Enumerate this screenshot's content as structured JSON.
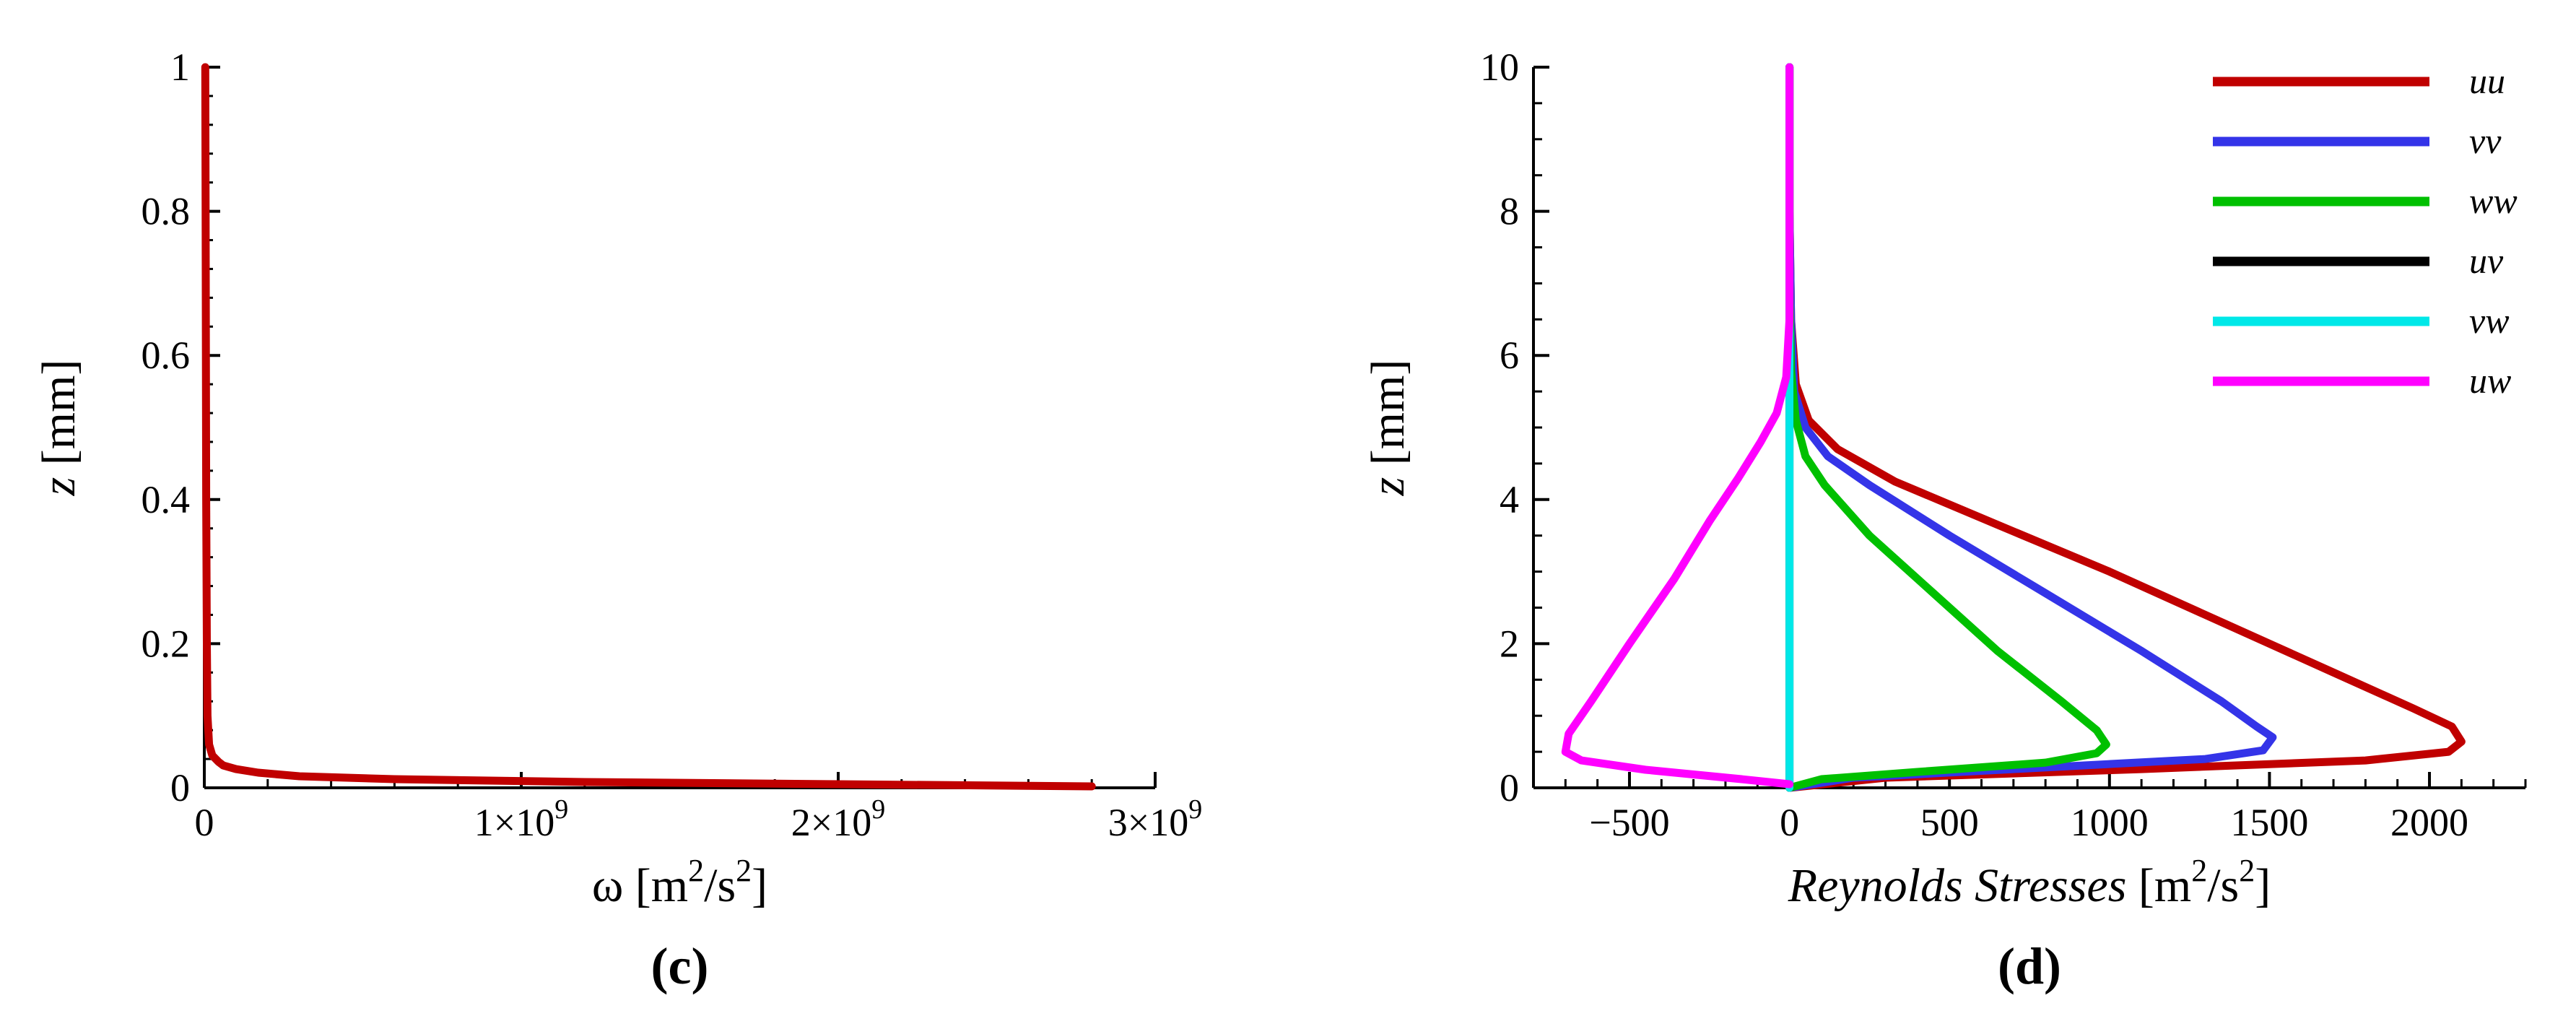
{
  "chart_data": [
    {
      "type": "line",
      "panel_label": "(c)",
      "xlabel": {
        "symbol": "ω",
        "unit_open": "[m",
        "unit_sup1": "2",
        "unit_mid": "/s",
        "unit_sup2": "2",
        "unit_close": "]"
      },
      "ylabel": {
        "var": "z",
        "unit": "[mm]"
      },
      "xlim": [
        0,
        3000000000
      ],
      "ylim": [
        0,
        1
      ],
      "x_ticks": [
        {
          "value": 0,
          "label": "0"
        },
        {
          "value": 1000000000,
          "label": "1×10",
          "sup": "9"
        },
        {
          "value": 2000000000,
          "label": "2×10",
          "sup": "9"
        },
        {
          "value": 3000000000,
          "label": "3×10",
          "sup": "9"
        }
      ],
      "y_ticks": [
        {
          "value": 0,
          "label": "0"
        },
        {
          "value": 0.2,
          "label": "0.2"
        },
        {
          "value": 0.4,
          "label": "0.4"
        },
        {
          "value": 0.6,
          "label": "0.6"
        },
        {
          "value": 0.8,
          "label": "0.8"
        },
        {
          "value": 1,
          "label": "1"
        }
      ],
      "grid": false,
      "series": [
        {
          "color": "#c00000",
          "points": [
            [
              2800000000,
              0.002
            ],
            [
              2000000000,
              0.005
            ],
            [
              1200000000,
              0.008
            ],
            [
              600000000,
              0.012
            ],
            [
              300000000,
              0.016
            ],
            [
              170000000,
              0.021
            ],
            [
              100000000,
              0.026
            ],
            [
              60000000,
              0.031
            ],
            [
              45000000,
              0.036
            ],
            [
              25000000,
              0.045
            ],
            [
              15000000,
              0.06
            ],
            [
              10000000,
              0.1
            ],
            [
              8000000,
              0.2
            ],
            [
              6000000,
              0.4
            ],
            [
              5000000,
              0.6
            ],
            [
              4000000,
              0.8
            ],
            [
              3000000,
              1.0
            ]
          ]
        }
      ]
    },
    {
      "type": "line",
      "panel_label": "(d)",
      "xlabel": {
        "var": "Reynolds Stresses",
        "unit_open": "[m",
        "unit_sup1": "2",
        "unit_mid": "/s",
        "unit_sup2": "2",
        "unit_close": "]"
      },
      "ylabel": {
        "var": "z",
        "unit": "[mm]"
      },
      "xlim": [
        -800,
        2300
      ],
      "ylim": [
        0,
        10
      ],
      "x_ticks": [
        {
          "value": -500,
          "label": "−500"
        },
        {
          "value": 0,
          "label": "0"
        },
        {
          "value": 500,
          "label": "500"
        },
        {
          "value": 1000,
          "label": "1000"
        },
        {
          "value": 1500,
          "label": "1500"
        },
        {
          "value": 2000,
          "label": "2000"
        }
      ],
      "y_ticks": [
        {
          "value": 0,
          "label": "0"
        },
        {
          "value": 2,
          "label": "2"
        },
        {
          "value": 4,
          "label": "4"
        },
        {
          "value": 6,
          "label": "6"
        },
        {
          "value": 8,
          "label": "8"
        },
        {
          "value": 10,
          "label": "10"
        }
      ],
      "grid": false,
      "legend_position": "top-right",
      "series": [
        {
          "name": "uu",
          "color": "#c00000",
          "points": [
            [
              0,
              0
            ],
            [
              300,
              0.14
            ],
            [
              1100,
              0.26
            ],
            [
              1800,
              0.38
            ],
            [
              2060,
              0.5
            ],
            [
              2100,
              0.64
            ],
            [
              2070,
              0.85
            ],
            [
              1950,
              1.1
            ],
            [
              1700,
              1.6
            ],
            [
              1350,
              2.3
            ],
            [
              1000,
              3.0
            ],
            [
              650,
              3.65
            ],
            [
              330,
              4.25
            ],
            [
              150,
              4.7
            ],
            [
              60,
              5.1
            ],
            [
              20,
              5.6
            ],
            [
              5,
              6.5
            ],
            [
              0,
              8
            ],
            [
              0,
              10
            ]
          ]
        },
        {
          "name": "vv",
          "color": "#3434e8",
          "points": [
            [
              0,
              0
            ],
            [
              200,
              0.14
            ],
            [
              700,
              0.26
            ],
            [
              1300,
              0.4
            ],
            [
              1480,
              0.52
            ],
            [
              1510,
              0.7
            ],
            [
              1460,
              0.85
            ],
            [
              1350,
              1.2
            ],
            [
              1100,
              1.9
            ],
            [
              800,
              2.7
            ],
            [
              500,
              3.5
            ],
            [
              250,
              4.2
            ],
            [
              120,
              4.6
            ],
            [
              50,
              5.0
            ],
            [
              15,
              5.5
            ],
            [
              5,
              6.5
            ],
            [
              0,
              8
            ],
            [
              0,
              10
            ]
          ]
        },
        {
          "name": "ww",
          "color": "#00c000",
          "points": [
            [
              0,
              0
            ],
            [
              100,
              0.12
            ],
            [
              400,
              0.22
            ],
            [
              800,
              0.35
            ],
            [
              960,
              0.48
            ],
            [
              990,
              0.6
            ],
            [
              960,
              0.8
            ],
            [
              850,
              1.2
            ],
            [
              650,
              1.9
            ],
            [
              450,
              2.7
            ],
            [
              250,
              3.5
            ],
            [
              110,
              4.2
            ],
            [
              50,
              4.6
            ],
            [
              20,
              5.1
            ],
            [
              5,
              5.8
            ],
            [
              0,
              7
            ],
            [
              0,
              10
            ]
          ]
        },
        {
          "name": "uv",
          "color": "#000000",
          "points": [
            [
              0,
              0
            ],
            [
              0,
              10
            ]
          ]
        },
        {
          "name": "vw",
          "color": "#00e8e8",
          "points": [
            [
              0,
              0
            ],
            [
              0,
              10
            ]
          ]
        },
        {
          "name": "uw",
          "color": "#ff00ff",
          "points": [
            [
              0,
              0.05
            ],
            [
              -150,
              0.12
            ],
            [
              -450,
              0.25
            ],
            [
              -650,
              0.38
            ],
            [
              -700,
              0.5
            ],
            [
              -690,
              0.75
            ],
            [
              -620,
              1.2
            ],
            [
              -500,
              2.0
            ],
            [
              -360,
              2.9
            ],
            [
              -250,
              3.7
            ],
            [
              -160,
              4.3
            ],
            [
              -90,
              4.8
            ],
            [
              -40,
              5.2
            ],
            [
              -10,
              5.7
            ],
            [
              0,
              6.5
            ],
            [
              0,
              10
            ]
          ]
        }
      ]
    }
  ]
}
